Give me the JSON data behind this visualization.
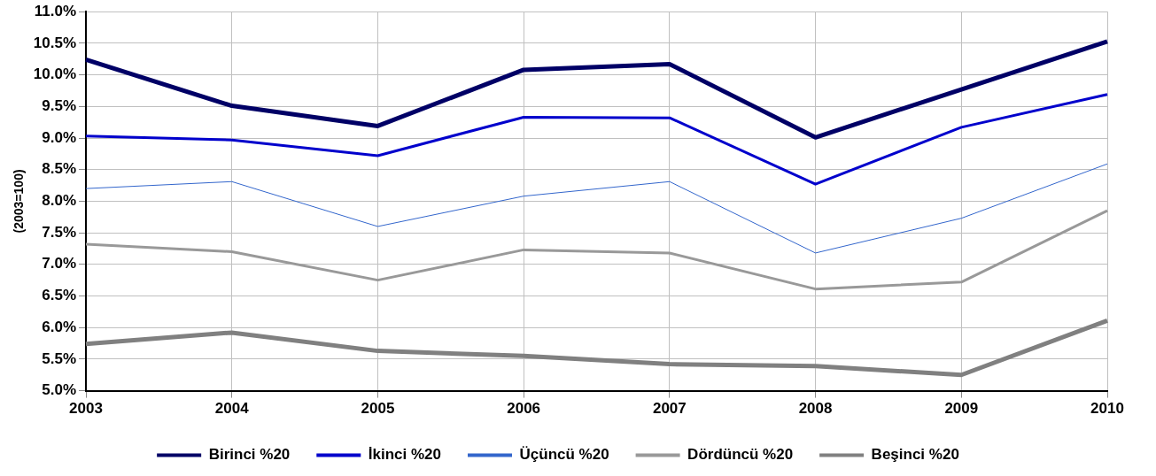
{
  "chart_data": {
    "type": "line",
    "ylabel": "(2003=100)",
    "categories": [
      "2003",
      "2004",
      "2005",
      "2006",
      "2007",
      "2008",
      "2009",
      "2010"
    ],
    "series": [
      {
        "name": "Birinci %20",
        "color": "#000066",
        "values": [
          10.24,
          9.51,
          9.19,
          10.08,
          10.17,
          9.01,
          9.77,
          10.53
        ]
      },
      {
        "name": "İkinci %20",
        "color": "#0000cc",
        "values": [
          9.03,
          8.97,
          8.72,
          9.33,
          9.32,
          8.27,
          9.17,
          9.69
        ]
      },
      {
        "name": "Üçüncü %20",
        "color": "#3366cc",
        "values": [
          8.2,
          8.31,
          7.6,
          8.08,
          8.31,
          7.18,
          7.73,
          8.59
        ]
      },
      {
        "name": "Dördüncü %20",
        "color": "#999999",
        "values": [
          7.32,
          7.2,
          6.75,
          7.23,
          7.18,
          6.61,
          6.72,
          7.85
        ]
      },
      {
        "name": "Beşinci %20",
        "color": "#808080",
        "values": [
          5.74,
          5.92,
          5.63,
          5.55,
          5.42,
          5.39,
          5.25,
          6.11
        ]
      }
    ],
    "ylim": [
      5,
      11
    ],
    "yticks": [
      {
        "value": 5,
        "label": "5.0%"
      },
      {
        "value": 5.5,
        "label": "5.5%"
      },
      {
        "value": 6,
        "label": "6.0%"
      },
      {
        "value": 6.5,
        "label": "6.5%"
      },
      {
        "value": 7,
        "label": "7.0%"
      },
      {
        "value": 7.5,
        "label": "7.5%"
      },
      {
        "value": 8,
        "label": "8.0%"
      },
      {
        "value": 8.5,
        "label": "8.5%"
      },
      {
        "value": 9,
        "label": "9.0%"
      },
      {
        "value": 9.5,
        "label": "9.5%"
      },
      {
        "value": 10,
        "label": "10.0%"
      },
      {
        "value": 10.5,
        "label": "10.5%"
      },
      {
        "value": 11,
        "label": "11.0%"
      }
    ],
    "grid": true,
    "legend": "bottom",
    "marker": "none",
    "line_style": "solid"
  }
}
